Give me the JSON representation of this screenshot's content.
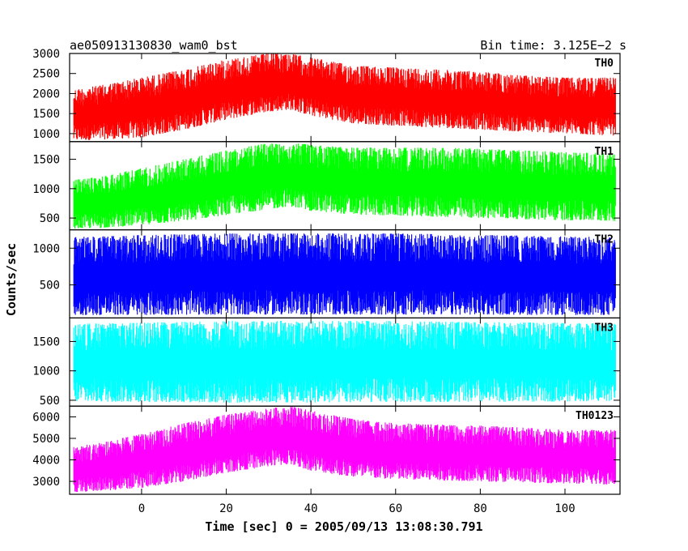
{
  "header": {
    "title": "ae050913130830_wam0_bst",
    "bin_time": "Bin time: 3.125E−2 s"
  },
  "chart_data": {
    "type": "line",
    "xlabel": "Time [sec] 0 = 2005/09/13 13:08:30.791",
    "ylabel": "Counts/sec",
    "xlim": [
      -17,
      113
    ],
    "x_ticks": [
      0,
      20,
      40,
      60,
      80,
      100
    ],
    "x_tick_labels": [
      "0",
      "20",
      "40",
      "60",
      "80",
      "100"
    ],
    "data_x_range": [
      -16,
      112
    ],
    "series": [
      {
        "name": "TH0",
        "color": "#ff0000",
        "ylim": [
          800,
          3000
        ],
        "y_ticks": [
          1000,
          1500,
          2000,
          2500,
          3000
        ],
        "x": [
          -16,
          -10,
          0,
          10,
          20,
          30,
          35,
          40,
          50,
          60,
          70,
          80,
          90,
          100,
          112
        ],
        "upper": [
          2100,
          2200,
          2400,
          2600,
          2850,
          3000,
          3000,
          2900,
          2700,
          2650,
          2600,
          2550,
          2450,
          2400,
          2400
        ],
        "lower": [
          830,
          850,
          900,
          1100,
          1350,
          1550,
          1600,
          1450,
          1250,
          1200,
          1150,
          1100,
          1050,
          1000,
          950
        ]
      },
      {
        "name": "TH1",
        "color": "#00ff00",
        "ylim": [
          300,
          1800
        ],
        "y_ticks": [
          500,
          1000,
          1500
        ],
        "x": [
          -16,
          -10,
          0,
          10,
          20,
          30,
          35,
          40,
          50,
          60,
          70,
          80,
          90,
          100,
          112
        ],
        "upper": [
          1150,
          1200,
          1350,
          1500,
          1650,
          1780,
          1780,
          1750,
          1700,
          1700,
          1700,
          1680,
          1650,
          1620,
          1600
        ],
        "lower": [
          320,
          330,
          380,
          450,
          550,
          650,
          700,
          620,
          560,
          540,
          520,
          500,
          480,
          460,
          450
        ]
      },
      {
        "name": "TH2",
        "color": "#0000ff",
        "ylim": [
          50,
          1250
        ],
        "y_ticks": [
          500,
          1000
        ],
        "x": [
          -16,
          0,
          20,
          40,
          60,
          80,
          100,
          112
        ],
        "upper": [
          1150,
          1180,
          1200,
          1200,
          1200,
          1180,
          1160,
          1150
        ],
        "lower": [
          90,
          90,
          95,
          95,
          95,
          95,
          90,
          90
        ]
      },
      {
        "name": "TH3",
        "color": "#00ffff",
        "ylim": [
          400,
          1900
        ],
        "y_ticks": [
          500,
          1000,
          1500
        ],
        "x": [
          -16,
          0,
          20,
          40,
          60,
          80,
          100,
          112
        ],
        "upper": [
          1800,
          1820,
          1850,
          1850,
          1850,
          1830,
          1820,
          1800
        ],
        "lower": [
          480,
          470,
          460,
          460,
          470,
          470,
          480,
          490
        ]
      },
      {
        "name": "TH0123",
        "color": "#ff00ff",
        "ylim": [
          2400,
          6500
        ],
        "y_ticks": [
          3000,
          4000,
          5000,
          6000
        ],
        "x": [
          -16,
          -10,
          0,
          10,
          20,
          30,
          35,
          40,
          50,
          60,
          70,
          80,
          90,
          100,
          112
        ],
        "upper": [
          4600,
          4800,
          5200,
          5700,
          6100,
          6400,
          6500,
          6300,
          5900,
          5700,
          5650,
          5600,
          5500,
          5400,
          5400
        ],
        "lower": [
          2500,
          2550,
          2700,
          3000,
          3400,
          3700,
          3800,
          3500,
          3200,
          3100,
          3050,
          3000,
          2950,
          2900,
          2850
        ]
      }
    ]
  }
}
